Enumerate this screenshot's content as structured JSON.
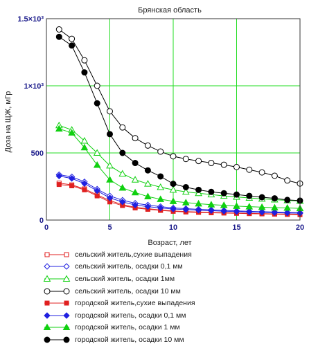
{
  "chart_data": {
    "type": "line",
    "title": "Брянская область",
    "xlabel": "Возраст, лет",
    "ylabel": "Доза на ЩЖ, мГр",
    "xlim": [
      0,
      20
    ],
    "ylim": [
      0,
      1500
    ],
    "xticks": [
      0,
      5,
      10,
      15,
      20
    ],
    "xtick_labels": [
      "0",
      "5",
      "10",
      "15",
      "20"
    ],
    "yticks": [
      0,
      500,
      1000,
      1500
    ],
    "ytick_labels": [
      "0",
      "500",
      "1×10³",
      "1.5×10³"
    ],
    "grid": true,
    "legend_position": "bottom",
    "x": [
      1,
      2,
      3,
      4,
      5,
      6,
      7,
      8,
      9,
      10,
      11,
      12,
      13,
      14,
      15,
      16,
      17,
      18,
      19,
      20
    ],
    "series": [
      {
        "name": "сельский житель,сухие выпадения",
        "color": "#e02020",
        "marker": "square",
        "filled": false,
        "values": [
          275,
          262,
          232,
          188,
          145,
          115,
          95,
          85,
          75,
          68,
          63,
          60,
          57,
          55,
          52,
          50,
          48,
          46,
          45,
          43
        ]
      },
      {
        "name": "сельский житель, осадки 0,1 мм",
        "color": "#2020e0",
        "marker": "diamond",
        "filled": false,
        "values": [
          338,
          322,
          285,
          230,
          180,
          148,
          125,
          112,
          100,
          90,
          85,
          80,
          76,
          72,
          68,
          65,
          62,
          60,
          57,
          55
        ]
      },
      {
        "name": "сельский житель, осадки 1мм",
        "color": "#10d010",
        "marker": "triangle",
        "filled": false,
        "values": [
          705,
          672,
          590,
          500,
          405,
          345,
          300,
          270,
          245,
          225,
          210,
          200,
          190,
          180,
          172,
          165,
          158,
          152,
          146,
          142
        ]
      },
      {
        "name": "сельский житель, осадки 10 мм",
        "color": "#000000",
        "marker": "circle",
        "filled": false,
        "values": [
          1420,
          1350,
          1190,
          1000,
          810,
          690,
          610,
          555,
          510,
          475,
          455,
          440,
          425,
          412,
          395,
          375,
          355,
          330,
          295,
          272
        ]
      },
      {
        "name": "городской житель,сухие выпадения",
        "color": "#e02020",
        "marker": "square",
        "filled": true,
        "values": [
          265,
          255,
          225,
          180,
          135,
          108,
          90,
          80,
          72,
          65,
          60,
          57,
          54,
          52,
          50,
          48,
          46,
          44,
          42,
          40
        ]
      },
      {
        "name": "городской житель, осадки  0,1 мм",
        "color": "#2020e0",
        "marker": "diamond",
        "filled": true,
        "values": [
          328,
          310,
          272,
          218,
          165,
          135,
          112,
          100,
          90,
          82,
          78,
          73,
          70,
          66,
          63,
          60,
          58,
          55,
          53,
          51
        ]
      },
      {
        "name": "городской житель, осадки 1 мм",
        "color": "#10d010",
        "marker": "triangle",
        "filled": true,
        "values": [
          680,
          650,
          540,
          410,
          300,
          240,
          205,
          175,
          155,
          140,
          130,
          122,
          115,
          110,
          104,
          100,
          96,
          92,
          90,
          87
        ]
      },
      {
        "name": "городской житель, осадки 10 мм",
        "color": "#000000",
        "marker": "circle",
        "filled": true,
        "values": [
          1365,
          1300,
          1100,
          870,
          640,
          500,
          425,
          370,
          325,
          270,
          245,
          225,
          210,
          200,
          190,
          180,
          170,
          162,
          150,
          145
        ]
      }
    ]
  }
}
